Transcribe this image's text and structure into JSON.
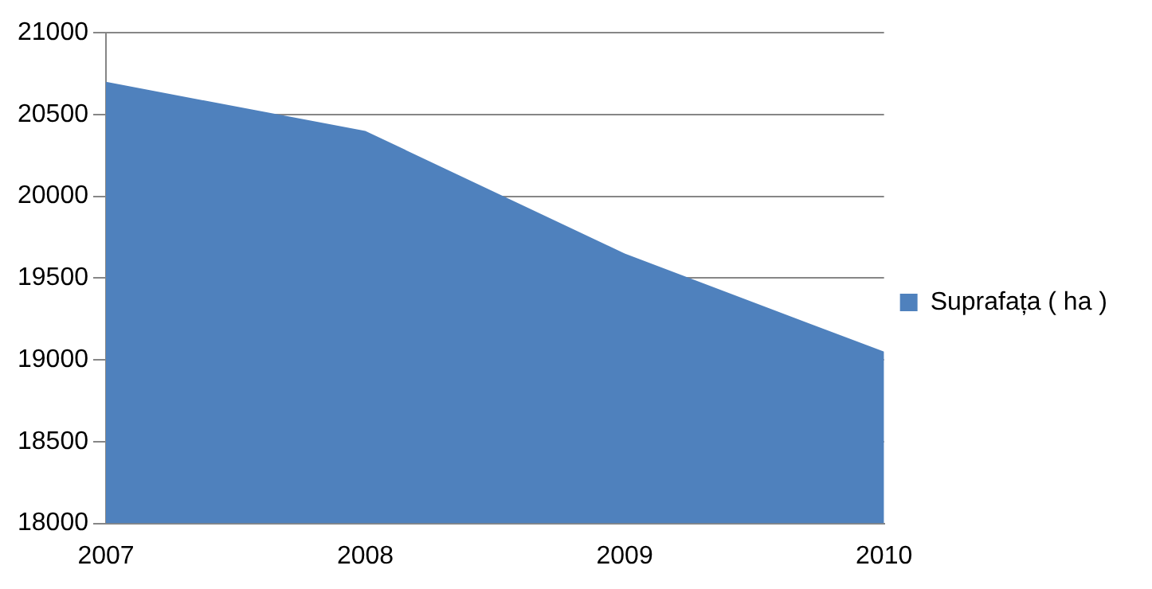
{
  "chart_data": {
    "type": "area",
    "categories": [
      "2007",
      "2008",
      "2009",
      "2010"
    ],
    "series": [
      {
        "name": "Suprafața ( ha )",
        "color": "#4f81bd",
        "values": [
          20700,
          20400,
          19650,
          19050
        ]
      }
    ],
    "ylim": [
      18000,
      21000
    ],
    "yticks": [
      18000,
      18500,
      19000,
      19500,
      20000,
      20500,
      21000
    ],
    "grid": "y",
    "legend": "right"
  }
}
